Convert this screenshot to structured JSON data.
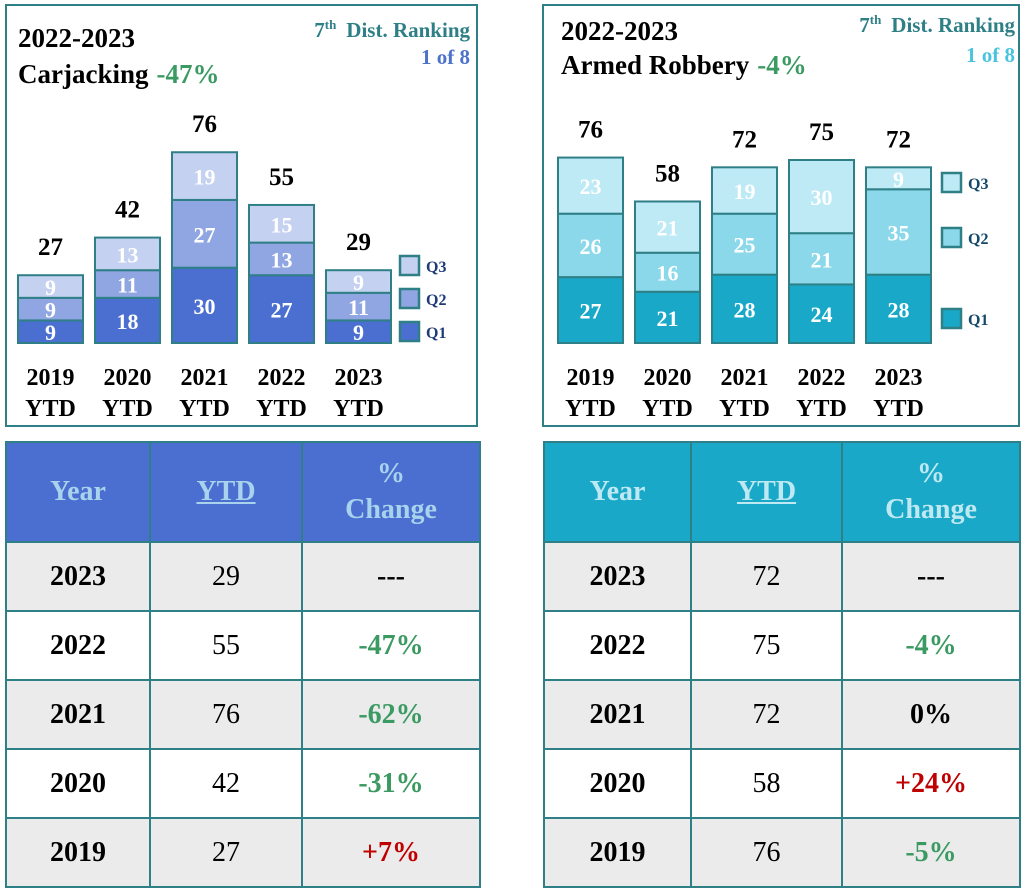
{
  "colors": {
    "frame": "#2e7f86",
    "left_q1": "#4a6fd0",
    "left_q2": "#8fa6e2",
    "left_q3": "#c5d1f0",
    "right_q1": "#1aa8c8",
    "right_q2": "#8ad8ea",
    "right_q3": "#bdeaf5",
    "decrease": "#3a9a62",
    "increase": "#c00000"
  },
  "chart_data": [
    {
      "type": "bar",
      "stacked": true,
      "title_line1": "2022-2023",
      "title_line2": "Carjacking",
      "title_change": "-47%",
      "ranking_label": "Dist. Ranking",
      "ranking_prefix": "7",
      "ranking_sup": "th",
      "ranking_value": "1 of 8",
      "categories_line1": [
        "2019",
        "2020",
        "2021",
        "2022",
        "2023"
      ],
      "categories_line2": [
        "YTD",
        "YTD",
        "YTD",
        "YTD",
        "YTD"
      ],
      "totals": [
        27,
        42,
        76,
        55,
        29
      ],
      "series": [
        {
          "name": "Q1",
          "values": [
            9,
            18,
            30,
            27,
            9
          ]
        },
        {
          "name": "Q2",
          "values": [
            9,
            11,
            27,
            13,
            11
          ]
        },
        {
          "name": "Q3",
          "values": [
            9,
            13,
            19,
            15,
            9
          ]
        }
      ],
      "ylim": [
        0,
        76
      ],
      "legend": "right",
      "grid": false
    },
    {
      "type": "bar",
      "stacked": true,
      "title_line1": "2022-2023",
      "title_line2": "Armed Robbery",
      "title_change": "-4%",
      "ranking_label": "Dist. Ranking",
      "ranking_prefix": "7",
      "ranking_sup": "th",
      "ranking_value": "1 of 8",
      "categories_line1": [
        "2019",
        "2020",
        "2021",
        "2022",
        "2023"
      ],
      "categories_line2": [
        "YTD",
        "YTD",
        "YTD",
        "YTD",
        "YTD"
      ],
      "totals": [
        76,
        58,
        72,
        75,
        72
      ],
      "series": [
        {
          "name": "Q1",
          "values": [
            27,
            21,
            28,
            24,
            28
          ]
        },
        {
          "name": "Q2",
          "values": [
            26,
            16,
            25,
            21,
            35
          ]
        },
        {
          "name": "Q3",
          "values": [
            23,
            21,
            19,
            30,
            9
          ]
        }
      ],
      "ylim": [
        0,
        76
      ],
      "legend": "right",
      "grid": false
    },
    {
      "type": "table",
      "headers": {
        "year": "Year",
        "ytd": "YTD",
        "change_line1": "%",
        "change_line2": "Change"
      },
      "rows": [
        {
          "year": "2023",
          "ytd": "29",
          "change": "---",
          "direction": "neutral"
        },
        {
          "year": "2022",
          "ytd": "55",
          "change": "-47%",
          "direction": "down"
        },
        {
          "year": "2021",
          "ytd": "76",
          "change": "-62%",
          "direction": "down"
        },
        {
          "year": "2020",
          "ytd": "42",
          "change": "-31%",
          "direction": "down"
        },
        {
          "year": "2019",
          "ytd": "27",
          "change": "+7%",
          "direction": "up"
        }
      ]
    },
    {
      "type": "table",
      "headers": {
        "year": "Year",
        "ytd": "YTD",
        "change_line1": "%",
        "change_line2": "Change"
      },
      "rows": [
        {
          "year": "2023",
          "ytd": "72",
          "change": "---",
          "direction": "neutral"
        },
        {
          "year": "2022",
          "ytd": "75",
          "change": "-4%",
          "direction": "down"
        },
        {
          "year": "2021",
          "ytd": "72",
          "change": "0%",
          "direction": "neutral"
        },
        {
          "year": "2020",
          "ytd": "58",
          "change": "+24%",
          "direction": "up"
        },
        {
          "year": "2019",
          "ytd": "76",
          "change": "-5%",
          "direction": "down"
        }
      ]
    }
  ]
}
